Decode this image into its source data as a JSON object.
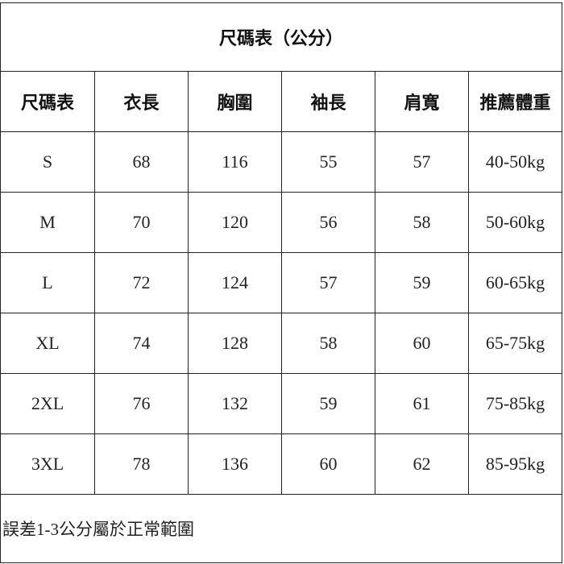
{
  "title": "尺碼表（公分）",
  "headers": [
    "尺碼表",
    "衣長",
    "胸圍",
    "袖長",
    "肩寬",
    "推薦體重"
  ],
  "rows": [
    [
      "S",
      "68",
      "116",
      "55",
      "57",
      "40-50kg"
    ],
    [
      "M",
      "70",
      "120",
      "56",
      "58",
      "50-60kg"
    ],
    [
      "L",
      "72",
      "124",
      "57",
      "59",
      "60-65kg"
    ],
    [
      "XL",
      "74",
      "128",
      "58",
      "60",
      "65-75kg"
    ],
    [
      "2XL",
      "76",
      "132",
      "59",
      "61",
      "75-85kg"
    ],
    [
      "3XL",
      "78",
      "136",
      "60",
      "62",
      "85-95kg"
    ]
  ],
  "footer_note": "誤差1-3公分屬於正常範圍"
}
